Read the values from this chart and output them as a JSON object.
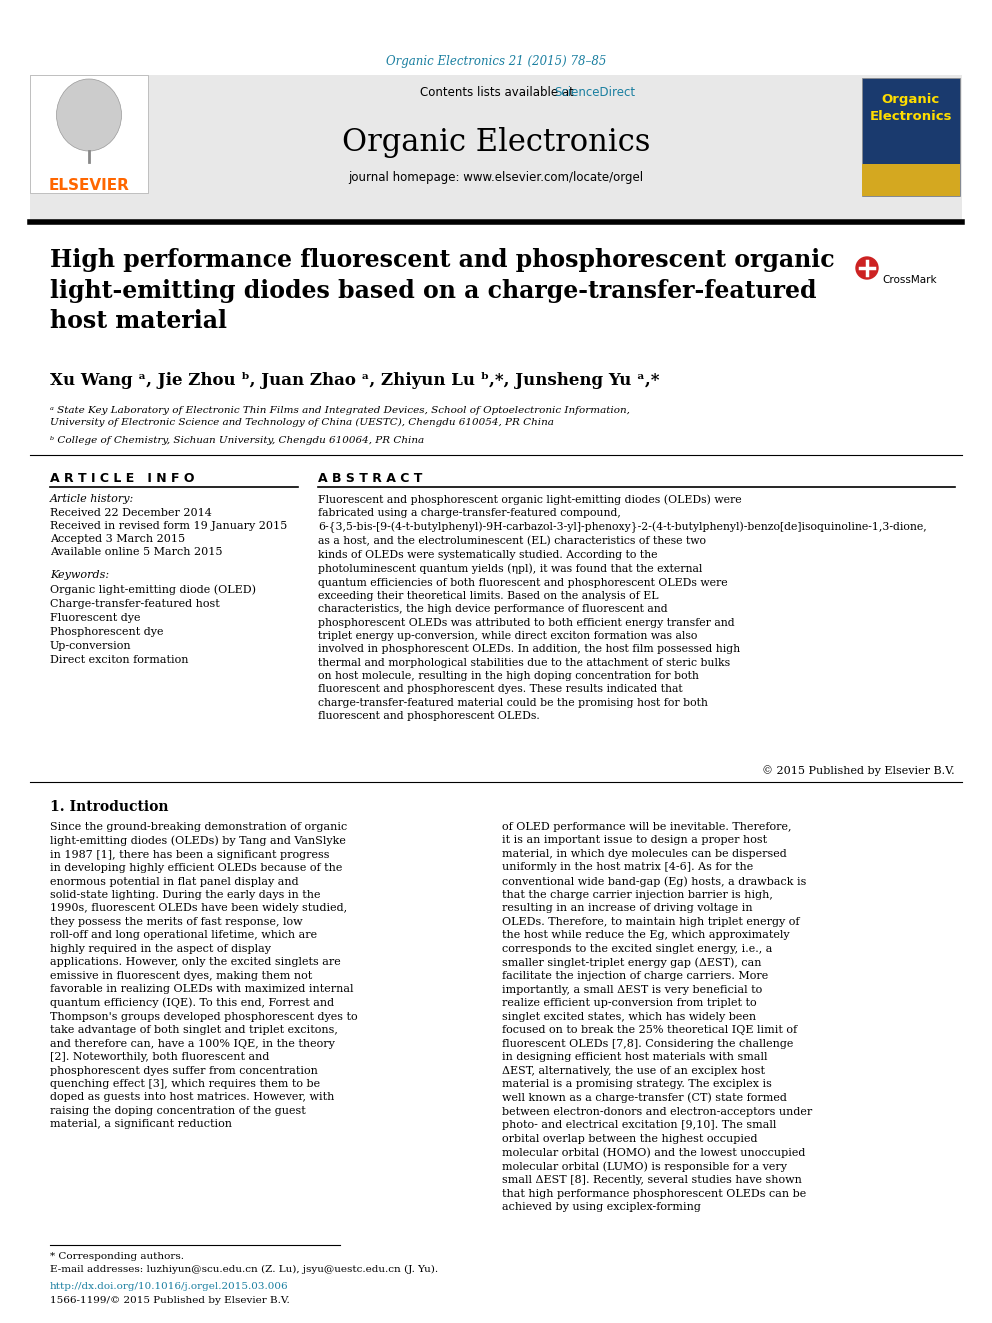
{
  "journal_ref": "Organic Electronics 21 (2015) 78–85",
  "journal_ref_color": "#1a7fa0",
  "header_bg": "#e8e8e8",
  "contents_text": "Contents lists available at ",
  "sciencedirect_text": "ScienceDirect",
  "sciencedirect_color": "#1a7fa0",
  "journal_title": "Organic Electronics",
  "journal_homepage": "journal homepage: www.elsevier.com/locate/orgel",
  "elsevier_color": "#ff6600",
  "elsevier_text": "ELSEVIER",
  "paper_title": "High performance fluorescent and phosphorescent organic\nlight-emitting diodes based on a charge-transfer-featured\nhost material",
  "authors": "Xu Wang ᵃ, Jie Zhou ᵇ, Juan Zhao ᵃ, Zhiyun Lu ᵇ,*, Junsheng Yu ᵃ,*",
  "affil_a": "ᵃ State Key Laboratory of Electronic Thin Films and Integrated Devices, School of Optoelectronic Information,\nUniversity of Electronic Science and Technology of China (UESTC), Chengdu 610054, PR China",
  "affil_b": "ᵇ College of Chemistry, Sichuan University, Chengdu 610064, PR China",
  "article_info_title": "A R T I C L E   I N F O",
  "article_history_label": "Article history:",
  "received_1": "Received 22 December 2014",
  "received_2": "Received in revised form 19 January 2015",
  "accepted": "Accepted 3 March 2015",
  "available": "Available online 5 March 2015",
  "keywords_label": "Keywords:",
  "keywords": "Organic light-emitting diode (OLED)\nCharge-transfer-featured host\nFluorescent dye\nPhosphorescent dye\nUp-conversion\nDirect exciton formation",
  "abstract_title": "A B S T R A C T",
  "abstract_text": "Fluorescent and phosphorescent organic light-emitting diodes (OLEDs) were fabricated using a charge-transfer-featured compound, 6-{3,5-bis-[9-(4-t-butylphenyl)-9H-carbazol-3-yl]-phenoxy}-2-(4-t-butylphenyl)-benzo[de]isoquinoline-1,3-dione, as a host, and the electroluminescent (EL) characteristics of these two kinds of OLEDs were systematically studied. According to the photoluminescent quantum yields (ηpl), it was found that the external quantum efficiencies of both fluorescent and phosphorescent OLEDs were exceeding their theoretical limits. Based on the analysis of EL characteristics, the high device performance of fluorescent and phosphorescent OLEDs was attributed to both efficient energy transfer and triplet energy up-conversion, while direct exciton formation was also involved in phosphorescent OLEDs. In addition, the host film possessed high thermal and morphological stabilities due to the attachment of steric bulks on host molecule, resulting in the high doping concentration for both fluorescent and phosphorescent dyes. These results indicated that charge-transfer-featured material could be the promising host for both fluorescent and phosphorescent OLEDs.",
  "copyright": "© 2015 Published by Elsevier B.V.",
  "intro_title": "1. Introduction",
  "intro_col1": "Since the ground-breaking demonstration of organic light-emitting diodes (OLEDs) by Tang and VanSlyke in 1987 [1], there has been a significant progress in developing highly efficient OLEDs because of the enormous potential in flat panel display and solid-state lighting. During the early days in the 1990s, fluorescent OLEDs have been widely studied, they possess the merits of fast response, low roll-off and long operational lifetime, which are highly required in the aspect of display applications. However, only the excited singlets are emissive in fluorescent dyes, making them not favorable in realizing OLEDs with maximized internal quantum efficiency (IQE). To this end, Forrest and Thompson's groups developed phosphorescent dyes to take advantage of both singlet and triplet excitons, and therefore can, have a 100% IQE, in the theory [2]. Noteworthily, both fluorescent and phosphorescent dyes suffer from concentration quenching effect [3], which requires them to be doped as guests into host matrices. However, with raising the doping concentration of the guest material, a significant reduction",
  "intro_col2": "of OLED performance will be inevitable. Therefore, it is an important issue to design a proper host material, in which dye molecules can be dispersed uniformly in the host matrix [4-6].\n    As for the conventional wide band-gap (Eg) hosts, a drawback is that the charge carrier injection barrier is high, resulting in an increase of driving voltage in OLEDs. Therefore, to maintain high triplet energy of the host while reduce the Eg, which approximately corresponds to the excited singlet energy, i.e., a smaller singlet-triplet energy gap (ΔEST), can facilitate the injection of charge carriers. More importantly, a small ΔEST is very beneficial to realize efficient up-conversion from triplet to singlet excited states, which has widely been focused on to break the 25% theoretical IQE limit of fluorescent OLEDs [7,8]. Considering the challenge in designing efficient host materials with small ΔEST, alternatively, the use of an exciplex host material is a promising strategy. The exciplex is well known as a charge-transfer (CT) state formed between electron-donors and electron-acceptors under photo- and electrical excitation [9,10]. The small orbital overlap between the highest occupied molecular orbital (HOMO) and the lowest unoccupied molecular orbital (LUMO) is responsible for a very small ΔEST [8].\n    Recently, several studies have shown that high performance phosphorescent OLEDs can be achieved by using exciplex-forming",
  "footnote_corresponding": "* Corresponding authors.",
  "footnote_email": "E-mail addresses: luzhiyun@scu.edu.cn (Z. Lu), jsyu@uestc.edu.cn (J. Yu).",
  "footnote_doi": "http://dx.doi.org/10.1016/j.orgel.2015.03.006",
  "footnote_issn": "1566-1199/© 2015 Published by Elsevier B.V.",
  "bg_color": "#ffffff",
  "text_color": "#000000"
}
